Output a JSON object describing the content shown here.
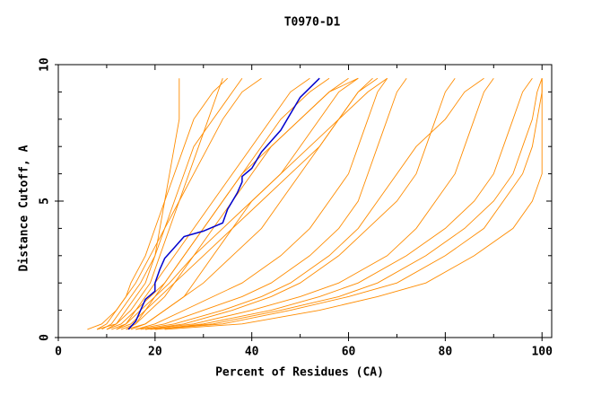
{
  "chart_data": {
    "type": "line",
    "title": "T0970-D1",
    "x_label": "Percent of Residues (CA)",
    "y_label": "Distance Cutoff, A",
    "xlim": [
      0,
      102
    ],
    "ylim": [
      0,
      10
    ],
    "xticks": [
      0,
      20,
      40,
      60,
      80,
      100
    ],
    "yticks": [
      0,
      5,
      10
    ],
    "xminorticks": [
      10,
      30,
      50,
      70,
      90
    ],
    "yminorticks": [
      1,
      2,
      3,
      4,
      6,
      7,
      8,
      9
    ],
    "series": [
      {
        "color": "#ff8c00",
        "x": [
          8,
          10,
          12,
          14,
          15,
          18,
          20,
          22,
          24,
          26,
          28,
          32,
          35
        ],
        "values": [
          0.3,
          0.5,
          1,
          1.5,
          2,
          3,
          4,
          5,
          6,
          7,
          8,
          9,
          9.5
        ]
      },
      {
        "color": "#ff8c00",
        "x": [
          9,
          11,
          13,
          15,
          17,
          20,
          22,
          24,
          26,
          28,
          32,
          36,
          38
        ],
        "values": [
          0.3,
          0.5,
          1,
          1.5,
          2,
          3,
          4,
          5,
          6,
          7,
          8,
          9,
          9.5
        ]
      },
      {
        "color": "#ff8c00",
        "x": [
          10,
          12,
          14,
          16,
          18,
          20,
          21,
          22,
          23,
          24,
          25,
          25,
          25
        ],
        "values": [
          0.3,
          0.5,
          1,
          1.5,
          2,
          3,
          4,
          5,
          6,
          7,
          8,
          9,
          9.5
        ]
      },
      {
        "color": "#ff8c00",
        "x": [
          12,
          14,
          16,
          18,
          20,
          24,
          28,
          32,
          36,
          40,
          44,
          48,
          52
        ],
        "values": [
          0.3,
          0.5,
          1,
          1.5,
          2,
          3,
          4,
          5,
          6,
          7,
          8,
          9,
          9.5
        ]
      },
      {
        "color": "#ff8c00",
        "x": [
          13,
          16,
          18,
          20,
          22,
          26,
          30,
          34,
          38,
          42,
          46,
          52,
          56
        ],
        "values": [
          0.3,
          0.5,
          1,
          1.5,
          2,
          3,
          4,
          5,
          6,
          7,
          8,
          9,
          9.5
        ]
      },
      {
        "color": "#ff8c00",
        "x": [
          14,
          16,
          19,
          22,
          24,
          28,
          32,
          36,
          40,
          44,
          50,
          56,
          60
        ],
        "values": [
          0.3,
          0.5,
          1,
          1.5,
          2,
          3,
          4,
          5,
          6,
          7,
          8,
          9,
          9.5
        ]
      },
      {
        "color": "#ff8c00",
        "x": [
          15,
          18,
          22,
          26,
          30,
          36,
          42,
          46,
          50,
          54,
          58,
          62,
          65
        ],
        "values": [
          0.3,
          0.5,
          1,
          1.5,
          2,
          3,
          4,
          5,
          6,
          7,
          8,
          9,
          9.5
        ]
      },
      {
        "color": "#ff8c00",
        "x": [
          16,
          20,
          26,
          32,
          38,
          46,
          52,
          56,
          60,
          62,
          64,
          66,
          68
        ],
        "values": [
          0.3,
          0.5,
          1,
          1.5,
          2,
          3,
          4,
          5,
          6,
          7,
          8,
          9,
          9.5
        ]
      },
      {
        "color": "#ff8c00",
        "x": [
          16,
          22,
          30,
          38,
          44,
          52,
          58,
          62,
          64,
          66,
          68,
          70,
          72
        ],
        "values": [
          0.3,
          0.5,
          1,
          1.5,
          2,
          3,
          4,
          5,
          6,
          7,
          8,
          9,
          9.5
        ]
      },
      {
        "color": "#ff8c00",
        "x": [
          18,
          26,
          36,
          44,
          50,
          58,
          64,
          70,
          74,
          76,
          78,
          80,
          82
        ],
        "values": [
          0.3,
          0.5,
          1,
          1.5,
          2,
          3,
          4,
          5,
          6,
          7,
          8,
          9,
          9.5
        ]
      },
      {
        "color": "#ff8c00",
        "x": [
          18,
          28,
          40,
          50,
          58,
          68,
          74,
          78,
          82,
          84,
          86,
          88,
          90
        ],
        "values": [
          0.3,
          0.5,
          1,
          1.5,
          2,
          3,
          4,
          5,
          6,
          7,
          8,
          9,
          9.5
        ]
      },
      {
        "color": "#ff8c00",
        "x": [
          20,
          30,
          44,
          54,
          62,
          72,
          80,
          86,
          90,
          92,
          94,
          96,
          98
        ],
        "values": [
          0.3,
          0.5,
          1,
          1.5,
          2,
          3,
          4,
          5,
          6,
          7,
          8,
          9,
          9.5
        ]
      },
      {
        "color": "#ff8c00",
        "x": [
          20,
          34,
          48,
          60,
          70,
          80,
          88,
          92,
          96,
          98,
          99,
          100,
          100
        ],
        "values": [
          0.3,
          0.5,
          1,
          1.5,
          2,
          3,
          4,
          5,
          6,
          7,
          8,
          9,
          9.5
        ]
      },
      {
        "color": "#ff8c00",
        "x": [
          22,
          38,
          54,
          66,
          76,
          86,
          94,
          98,
          100,
          100,
          100,
          100,
          100
        ],
        "values": [
          0.3,
          0.5,
          1,
          1.5,
          2,
          3,
          4,
          5,
          6,
          7,
          8,
          9,
          9.5
        ]
      },
      {
        "color": "#ff8c00",
        "x": [
          10,
          13,
          16,
          19,
          22,
          26,
          30,
          34,
          38,
          44,
          50,
          56,
          62
        ],
        "values": [
          0.3,
          0.5,
          1,
          1.5,
          2,
          3,
          4,
          5,
          6,
          7,
          8,
          9,
          9.5
        ]
      },
      {
        "color": "#ff8c00",
        "x": [
          8,
          12,
          15,
          17,
          19,
          21,
          23,
          25,
          27,
          29,
          31,
          33,
          34
        ],
        "values": [
          0.3,
          0.5,
          1,
          1.5,
          2,
          3,
          4,
          5,
          6,
          7,
          8,
          9,
          9.5
        ]
      },
      {
        "color": "#ff8c00",
        "x": [
          12,
          15,
          18,
          21,
          24,
          30,
          36,
          42,
          48,
          54,
          58,
          62,
          66
        ],
        "values": [
          0.3,
          0.5,
          1,
          1.5,
          2,
          3,
          4,
          5,
          6,
          7,
          8,
          9,
          9.5
        ]
      },
      {
        "color": "#ff8c00",
        "x": [
          17,
          24,
          34,
          42,
          48,
          56,
          62,
          66,
          70,
          74,
          80,
          84,
          88
        ],
        "values": [
          0.3,
          0.5,
          1,
          1.5,
          2,
          3,
          4,
          5,
          6,
          7,
          8,
          9,
          9.5
        ]
      },
      {
        "color": "#ff8c00",
        "x": [
          19,
          32,
          46,
          58,
          66,
          76,
          84,
          90,
          94,
          96,
          98,
          99,
          100
        ],
        "values": [
          0.3,
          0.5,
          1,
          1.5,
          2,
          3,
          4,
          5,
          6,
          7,
          8,
          9,
          9.5
        ]
      },
      {
        "color": "#ff8c00",
        "x": [
          11,
          14,
          17,
          20,
          23,
          28,
          34,
          40,
          46,
          52,
          58,
          64,
          68
        ],
        "values": [
          0.3,
          0.5,
          1,
          1.5,
          2,
          3,
          4,
          5,
          6,
          7,
          8,
          9,
          9.5
        ]
      },
      {
        "color": "#ff8c00",
        "x": [
          6,
          9,
          12,
          14,
          16,
          19,
          22,
          25,
          28,
          31,
          34,
          38,
          42
        ],
        "values": [
          0.3,
          0.5,
          1,
          1.5,
          2,
          3,
          4,
          5,
          6,
          7,
          8,
          9,
          9.5
        ]
      },
      {
        "color": "#ff8c00",
        "x": [
          14,
          18,
          22,
          26,
          28,
          32,
          36,
          40,
          46,
          50,
          54,
          58,
          62
        ],
        "values": [
          0.3,
          0.5,
          1,
          1.5,
          2,
          3,
          4,
          5,
          6,
          7,
          8,
          9,
          9.5
        ]
      },
      {
        "color": "#0000cd",
        "x": [
          14.5,
          16,
          17,
          18,
          20,
          20,
          21,
          22,
          24,
          26,
          30,
          34,
          35,
          37,
          38,
          38,
          40,
          42,
          46,
          48,
          50,
          54
        ],
        "values": [
          0.3,
          0.6,
          1.0,
          1.4,
          1.7,
          2.0,
          2.5,
          2.9,
          3.3,
          3.7,
          3.9,
          4.2,
          4.7,
          5.3,
          5.7,
          5.9,
          6.2,
          6.8,
          7.6,
          8.2,
          8.8,
          9.5
        ]
      }
    ]
  }
}
